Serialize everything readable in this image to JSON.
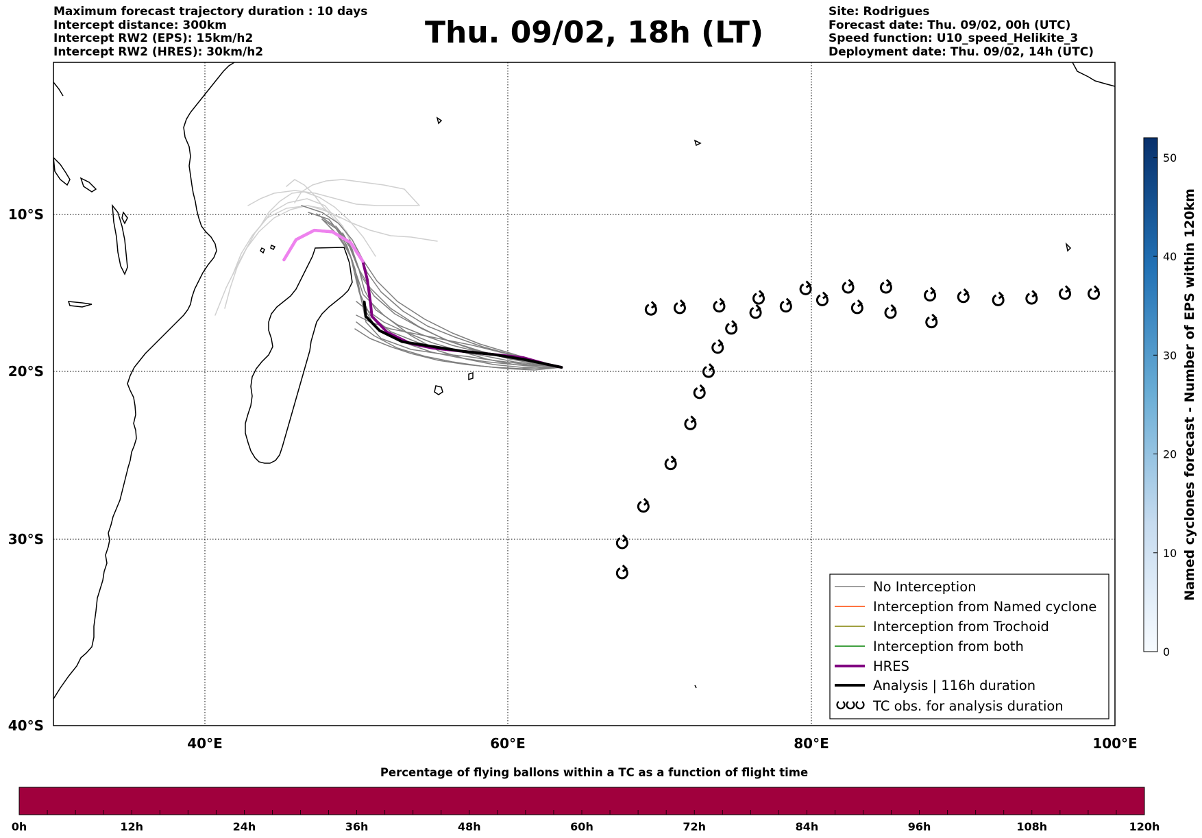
{
  "header_left": [
    "Maximum forecast trajectory duration : 10 days",
    "Intercept distance: 300km",
    "Intercept RW2 (EPS):  15km/h2",
    "Intercept RW2 (HRES): 30km/h2"
  ],
  "header_right": [
    "Site: Rodrigues",
    "Forecast date: Thu. 09/02, 00h (UTC)",
    "Speed function: U10_speed_Helikite_3",
    "Deployment date: Thu. 09/02, 14h (UTC)"
  ],
  "title": "Thu. 09/02, 18h (LT)",
  "map": {
    "lon_range": [
      30,
      100
    ],
    "lat_range": [
      -40,
      0
    ],
    "lon_ticks": [
      40,
      60,
      80,
      100
    ],
    "lon_tick_labels": [
      "40°E",
      "60°E",
      "80°E",
      "100°E"
    ],
    "lat_ticks": [
      -10,
      -20,
      -30,
      -40
    ],
    "lat_tick_labels": [
      "10°S",
      "20°S",
      "30°S",
      "40°S"
    ],
    "grid": true
  },
  "legend": {
    "placement": "lower-right",
    "items": [
      {
        "label": "No Interception",
        "color": "#808080"
      },
      {
        "label": "Interception from Named cyclone",
        "color": "#ff4500"
      },
      {
        "label": "Interception from Trochoid",
        "color": "#808000"
      },
      {
        "label": "Interception from both",
        "color": "#008000"
      },
      {
        "label": "HRES",
        "color": "#800080"
      },
      {
        "label": "Analysis | 116h duration",
        "color": "#000000"
      },
      {
        "label": "TC obs. for analysis duration",
        "color": "#000000"
      }
    ]
  },
  "colorbar_right": {
    "label": "Named cyclones forecast - Number of EPS within 120km",
    "range": [
      0,
      52
    ],
    "ticks": [
      "0",
      "10",
      "20",
      "30",
      "40",
      "50"
    ]
  },
  "colorbar_bottom": {
    "title": "Percentage of flying ballons within a TC as a function of flight time",
    "ticks": [
      "0h",
      "12h",
      "24h",
      "36h",
      "48h",
      "60h",
      "72h",
      "84h",
      "96h",
      "108h",
      "120h"
    ],
    "fill_color": "#a0003d"
  },
  "chart_data": {
    "type": "map",
    "site": "Rodrigues",
    "hres_track": [
      [
        45.2,
        -12.9
      ],
      [
        46.0,
        -11.6
      ],
      [
        47.2,
        -11.0
      ],
      [
        48.4,
        -11.1
      ],
      [
        49.6,
        -11.8
      ],
      [
        50.4,
        -13.0
      ],
      [
        50.7,
        -14.2
      ],
      [
        50.9,
        -15.6
      ],
      [
        51.0,
        -16.5
      ],
      [
        52.0,
        -17.5
      ],
      [
        53.5,
        -18.2
      ],
      [
        55.0,
        -18.5
      ],
      [
        57.0,
        -18.7
      ],
      [
        59.0,
        -18.9
      ],
      [
        61.0,
        -19.1
      ],
      [
        62.5,
        -19.5
      ],
      [
        63.5,
        -19.7
      ]
    ],
    "analysis_track": [
      [
        50.5,
        -15.6
      ],
      [
        50.6,
        -16.5
      ],
      [
        51.5,
        -17.4
      ],
      [
        53.0,
        -18.1
      ],
      [
        55.0,
        -18.4
      ],
      [
        57.0,
        -18.7
      ],
      [
        59.0,
        -18.9
      ],
      [
        61.0,
        -19.2
      ],
      [
        62.5,
        -19.5
      ],
      [
        63.5,
        -19.7
      ]
    ],
    "tc_observations": [
      [
        67.5,
        -31.9
      ],
      [
        67.5,
        -30.2
      ],
      [
        68.9,
        -28.1
      ],
      [
        70.7,
        -25.6
      ],
      [
        72.0,
        -23.2
      ],
      [
        72.6,
        -21.3
      ],
      [
        73.2,
        -20.0
      ],
      [
        73.8,
        -18.5
      ],
      [
        74.7,
        -17.3
      ],
      [
        69.4,
        -16.1
      ],
      [
        71.3,
        -16.0
      ],
      [
        73.9,
        -15.9
      ],
      [
        76.3,
        -16.3
      ],
      [
        76.5,
        -15.4
      ],
      [
        78.3,
        -15.9
      ],
      [
        79.6,
        -14.8
      ],
      [
        80.7,
        -15.5
      ],
      [
        82.4,
        -14.7
      ],
      [
        83.0,
        -16.0
      ],
      [
        84.9,
        -14.7
      ],
      [
        85.2,
        -16.3
      ],
      [
        87.8,
        -15.2
      ],
      [
        87.9,
        -16.9
      ],
      [
        90.0,
        -15.3
      ],
      [
        92.3,
        -15.5
      ],
      [
        94.5,
        -15.4
      ],
      [
        96.7,
        -15.1
      ],
      [
        98.6,
        -15.1
      ]
    ],
    "eps_members_count_interception": 0,
    "eps_cyclone_colorbar_max": 52
  }
}
